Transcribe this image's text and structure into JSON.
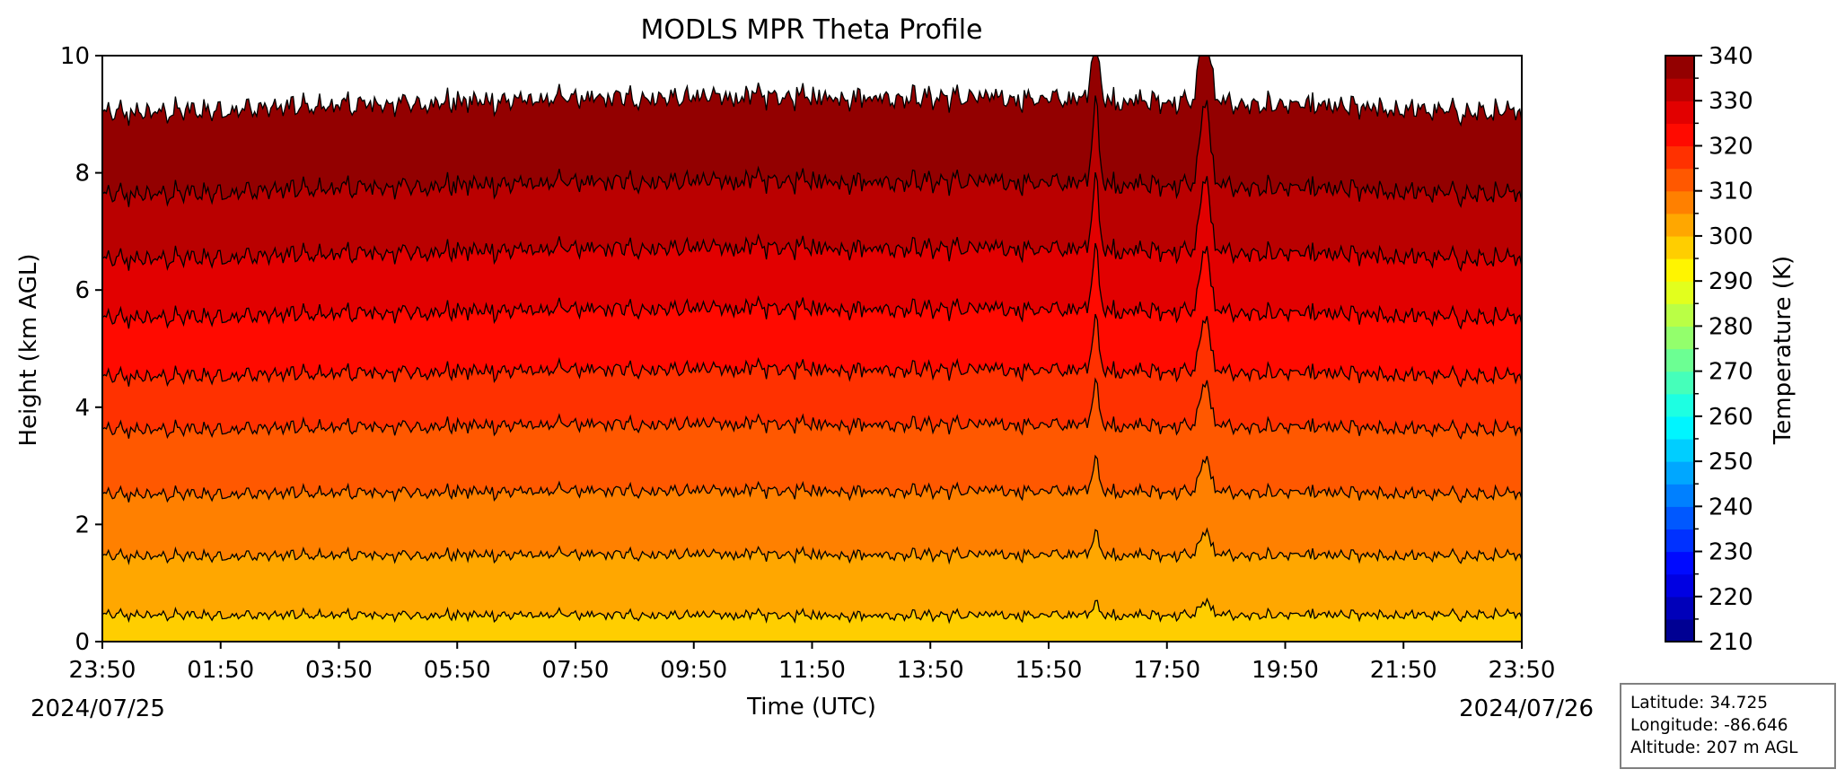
{
  "chart_data": {
    "type": "heatmap",
    "title": "MODLS MPR Theta Profile",
    "xlabel": "Time (UTC)",
    "ylabel": "Height (km AGL)",
    "ylim": [
      0,
      10
    ],
    "yticks": [
      "0",
      "2",
      "4",
      "6",
      "8",
      "10"
    ],
    "xticks": [
      "23:50",
      "01:50",
      "03:50",
      "05:50",
      "07:50",
      "09:50",
      "11:50",
      "13:50",
      "15:50",
      "17:50",
      "19:50",
      "21:50",
      "23:50"
    ],
    "start_date": "2024/07/25",
    "end_date": "2024/07/26",
    "colorbar": {
      "label": "Temperature (K)",
      "range": [
        210,
        340
      ],
      "ticks": [
        "210",
        "220",
        "230",
        "240",
        "250",
        "260",
        "270",
        "280",
        "290",
        "300",
        "310",
        "320",
        "330",
        "340"
      ],
      "level_step": 5
    },
    "contours": [
      {
        "theta": 300,
        "mean_height_km": 0.45
      },
      {
        "theta": 305,
        "mean_height_km": 1.45
      },
      {
        "theta": 310,
        "mean_height_km": 2.5
      },
      {
        "theta": 315,
        "mean_height_km": 3.6
      },
      {
        "theta": 320,
        "mean_height_km": 4.5
      },
      {
        "theta": 325,
        "mean_height_km": 5.5
      },
      {
        "theta": 330,
        "mean_height_km": 6.5
      },
      {
        "theta": 335,
        "mean_height_km": 7.6
      },
      {
        "theta": 340,
        "mean_height_km": 9.0
      }
    ],
    "features": [
      {
        "time": "16:40",
        "type": "spike"
      },
      {
        "time": "18:30",
        "type": "spike"
      }
    ]
  },
  "station": {
    "latitude": "Latitude: 34.725",
    "longitude": "Longitude: -86.646",
    "altitude": "Altitude: 207 m AGL"
  }
}
